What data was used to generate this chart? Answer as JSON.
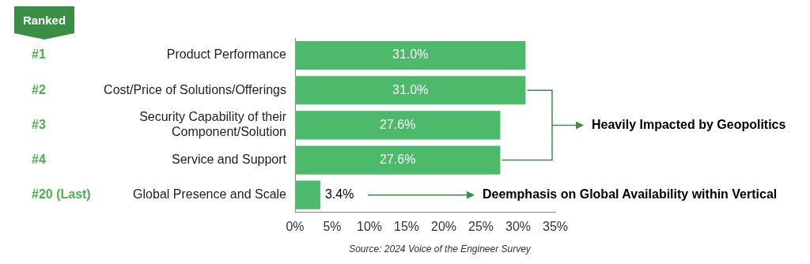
{
  "chart_data": {
    "type": "bar",
    "orientation": "horizontal",
    "categories": [
      "Product Performance",
      "Cost/Price of Solutions/Offerings",
      "Security Capability of their Component/Solution",
      "Service and Support",
      "Global Presence and Scale"
    ],
    "values": [
      31.0,
      31.0,
      27.6,
      27.6,
      3.4
    ],
    "value_labels": [
      "31.0%",
      "31.0%",
      "27.6%",
      "27.6%",
      "3.4%"
    ],
    "color": "#4cba6a",
    "xlim": [
      0,
      35
    ],
    "xticks": [
      {
        "value": 0,
        "label": "0%"
      },
      {
        "value": 5,
        "label": "5%"
      },
      {
        "value": 10,
        "label": "10%"
      },
      {
        "value": 15,
        "label": "15%"
      },
      {
        "value": 20,
        "label": "20%"
      },
      {
        "value": 25,
        "label": "25%"
      },
      {
        "value": 30,
        "label": "30%"
      },
      {
        "value": 35,
        "label": "35%"
      }
    ],
    "grid": false,
    "legend": false,
    "annotations": [
      "Ranked",
      "#1",
      "#2",
      "#3",
      "#4",
      "#20 (Last)",
      "Heavily Impacted by Geopolitics",
      "Deemphasis on Global Availability within Vertical",
      "Source: 2024 Voice of the Engineer Survey"
    ]
  }
}
